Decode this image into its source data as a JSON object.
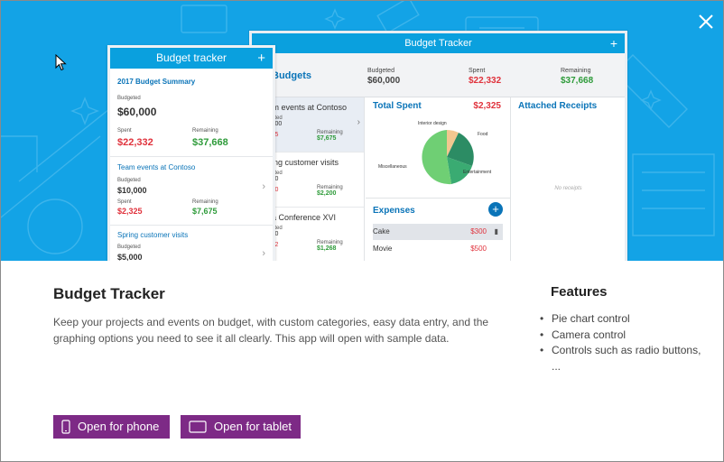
{
  "app": {
    "title": "Budget Tracker",
    "description": "Keep your projects and events on budget, with custom categories, easy data entry, and the graphing options you need to see it all clearly. This app will open with sample data.",
    "features_title": "Features",
    "features": [
      "Pie chart control",
      "Camera control",
      "Controls such as radio buttons, ..."
    ]
  },
  "buttons": {
    "phone": "Open for phone",
    "tablet": "Open for tablet"
  },
  "tablet_preview": {
    "header": "Budget Tracker",
    "summary_title": "Budgets",
    "budgeted_label": "Budgeted",
    "budgeted_value": "$60,000",
    "spent_label": "Spent",
    "spent_value": "$22,332",
    "remaining_label": "Remaining",
    "remaining_value": "$37,668",
    "events": [
      {
        "name": "Team events at Contoso",
        "a": "Budgeted",
        "a_val": "$10,000",
        "b": "$2,325",
        "r_label": "Remaining",
        "r_val": "$7,675"
      },
      {
        "name": "Spring customer visits",
        "a": "Budgeted",
        "a_val": "$5,000",
        "b": "$2,800",
        "r_label": "Remaining",
        "r_val": "$2,200"
      },
      {
        "name": "Data Conference XVI",
        "a": "Budgeted",
        "a_val": "$3,000",
        "b": "$1,732",
        "r_label": "Remaining",
        "r_val": "$1,268"
      }
    ],
    "total_spent_label": "Total Spent",
    "total_spent_value": "$2,325",
    "pie_labels": [
      "Interior design",
      "Food",
      "Miscellaneous",
      "Entertainment"
    ],
    "expenses_title": "Expenses",
    "expenses": [
      {
        "name": "Cake",
        "amount": "$300"
      },
      {
        "name": "Movie",
        "amount": "$500"
      }
    ],
    "receipts_title": "Attached Receipts",
    "no_receipts": "No receipts"
  },
  "phone_preview": {
    "header": "Budget tracker",
    "summary_title": "2017 Budget Summary",
    "budgeted_label": "Budgeted",
    "budgeted_value": "$60,000",
    "spent_label": "Spent",
    "spent_value": "$22,332",
    "remaining_label": "Remaining",
    "remaining_value": "$37,668",
    "event1": {
      "name": "Team events at Contoso",
      "budgeted_label": "Budgeted",
      "budgeted_value": "$10,000",
      "spent_label": "Spent",
      "spent_value": "$2,325",
      "remaining_label": "Remaining",
      "remaining_value": "$7,675"
    },
    "event2": {
      "name": "Spring customer visits",
      "budgeted_label": "Budgeted",
      "budgeted_value": "$5,000"
    }
  },
  "colors": {
    "hero": "#13a3e6",
    "accent": "#7d2a86",
    "blue": "#0a74b8",
    "red": "#e0323c",
    "green": "#2e9b3a"
  }
}
